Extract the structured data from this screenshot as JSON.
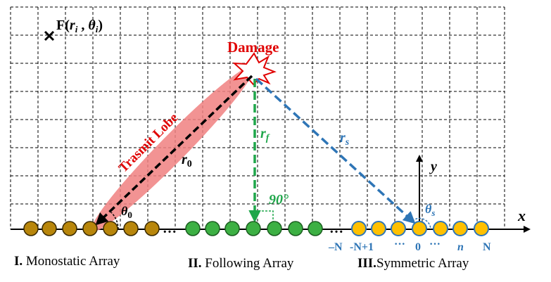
{
  "labels": {
    "point_F": "F(",
    "point_F_r": "r",
    "point_F_i1": "i",
    "point_F_comma": " , ",
    "point_F_theta": "θ",
    "point_F_i2": "i",
    "point_F_close": ")",
    "damage": "Damage",
    "transmit_lobe": "Trasmit Lobe",
    "r0": "r",
    "r0_sub": "0",
    "theta0": "θ",
    "theta0_sub": "0",
    "rf": "r",
    "rf_sub": "f",
    "rs": "r",
    "rs_sub": "s",
    "angle90": "90°",
    "thetas": "θ",
    "thetas_sub": "s",
    "axis_x": "x",
    "axis_y": "y",
    "dots1": "…",
    "dots2": "…"
  },
  "array_indices": {
    "minus_n": "–N",
    "minus_n_plus_1": "-N+1",
    "dots_left": "···",
    "zero": "0",
    "dots_right": "···",
    "n": "n",
    "N": "N"
  },
  "array_titles": {
    "monostatic_num": "I.",
    "monostatic": " Monostatic Array",
    "following_num": "II.",
    "following": " Following Array",
    "symmetric_num": "III.",
    "symmetric": "Symmetric Array"
  },
  "colors": {
    "grid": "#000000",
    "monostatic_fill": "#B8860B",
    "following_fill": "#3CB043",
    "symmetric_fill": "#FFC000",
    "symmetric_stroke": "#2E75B6",
    "green_arrow": "#1FA64A",
    "blue_arrow": "#2E75B6",
    "damage_red": "#E00000",
    "lobe": "#F08080",
    "index_blue": "#2E75B6",
    "index_red": "#C0504D"
  }
}
